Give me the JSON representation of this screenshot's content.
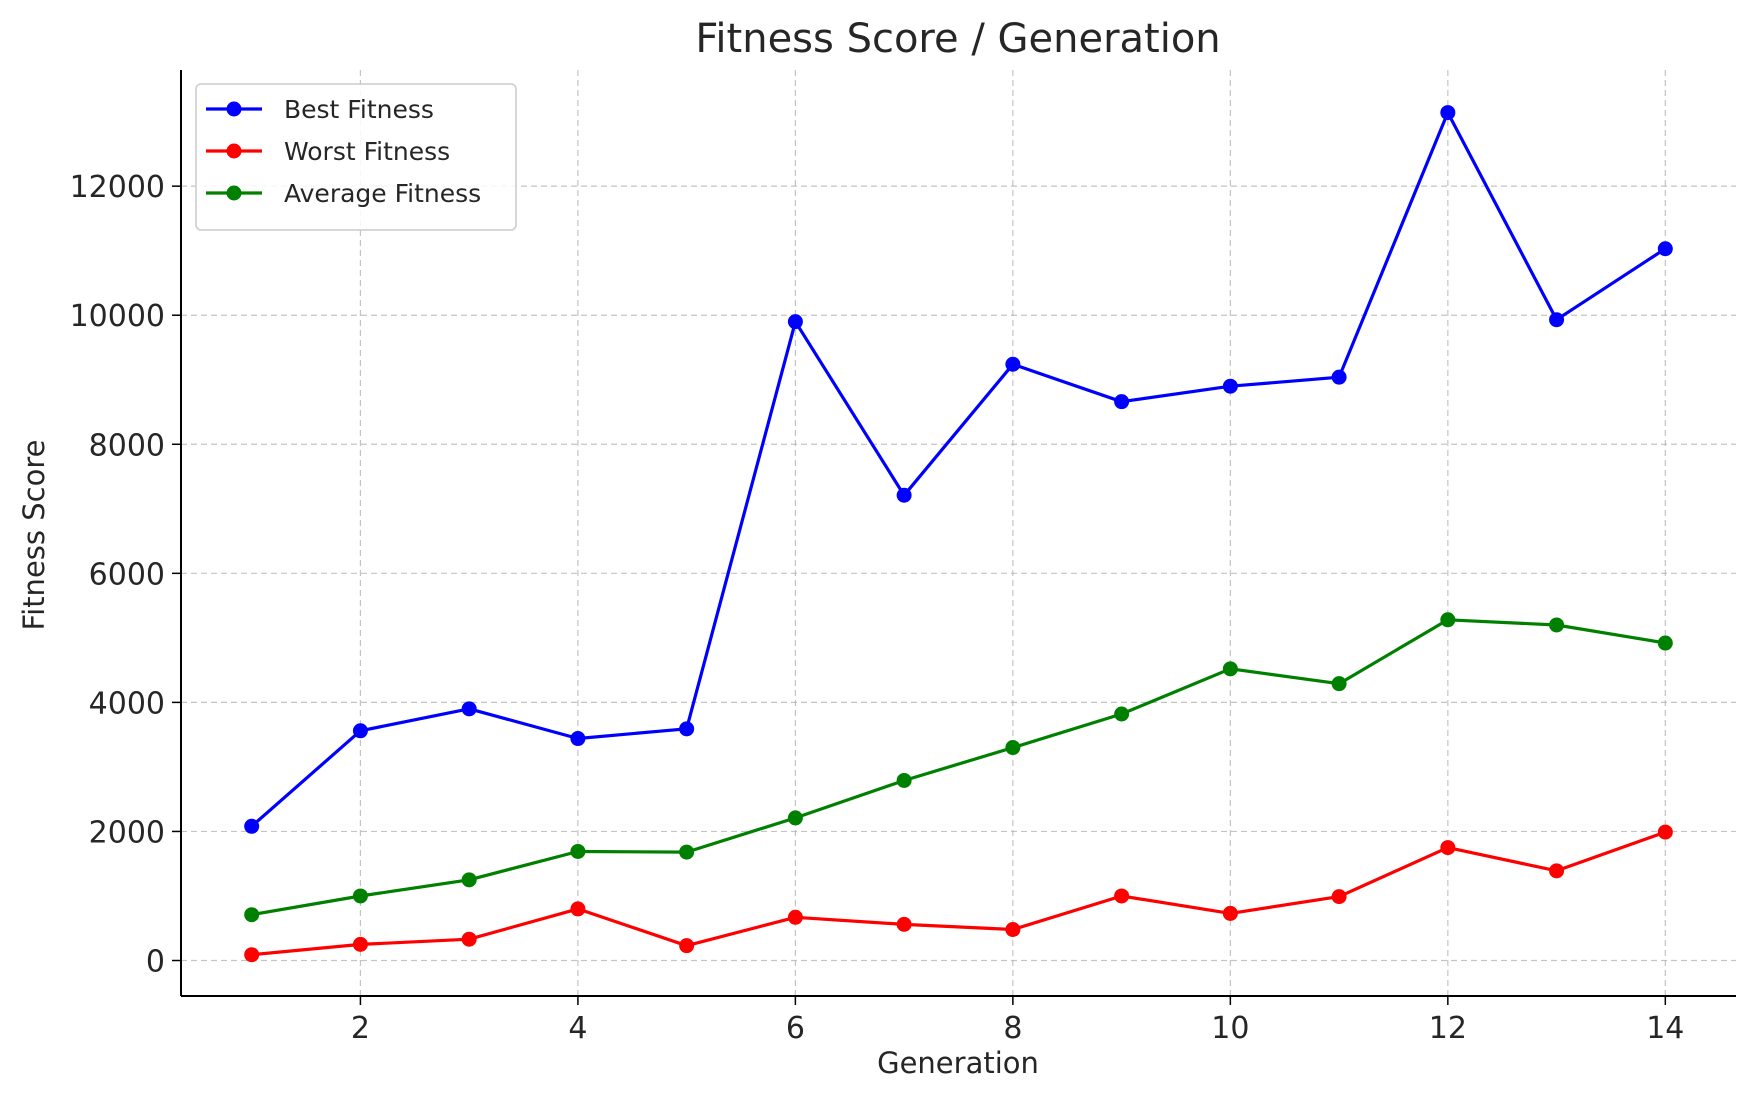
{
  "chart_data": {
    "type": "line",
    "title": "Fitness Score / Generation",
    "xlabel": "Generation",
    "ylabel": "Fitness Score",
    "xlim": [
      0.35,
      14.65
    ],
    "ylim": [
      -550,
      13800
    ],
    "xticks": [
      2,
      4,
      6,
      8,
      10,
      12,
      14
    ],
    "yticks": [
      0,
      2000,
      4000,
      6000,
      8000,
      10000,
      12000
    ],
    "grid": true,
    "legend_position": "top-left",
    "x": [
      1,
      2,
      3,
      4,
      5,
      6,
      7,
      8,
      9,
      10,
      11,
      12,
      13,
      14
    ],
    "series": [
      {
        "name": "Best Fitness",
        "color": "#0000ff",
        "values": [
          2080,
          3560,
          3900,
          3440,
          3590,
          9900,
          7210,
          9240,
          8660,
          8900,
          9040,
          13140,
          9930,
          11030
        ]
      },
      {
        "name": "Worst Fitness",
        "color": "#ff0000",
        "values": [
          90,
          250,
          330,
          800,
          230,
          670,
          560,
          480,
          1000,
          730,
          990,
          1750,
          1390,
          1990
        ]
      },
      {
        "name": "Average Fitness",
        "color": "#008000",
        "values": [
          710,
          1000,
          1250,
          1690,
          1680,
          2210,
          2790,
          3300,
          3820,
          4520,
          4290,
          5280,
          5200,
          4920
        ]
      }
    ]
  }
}
